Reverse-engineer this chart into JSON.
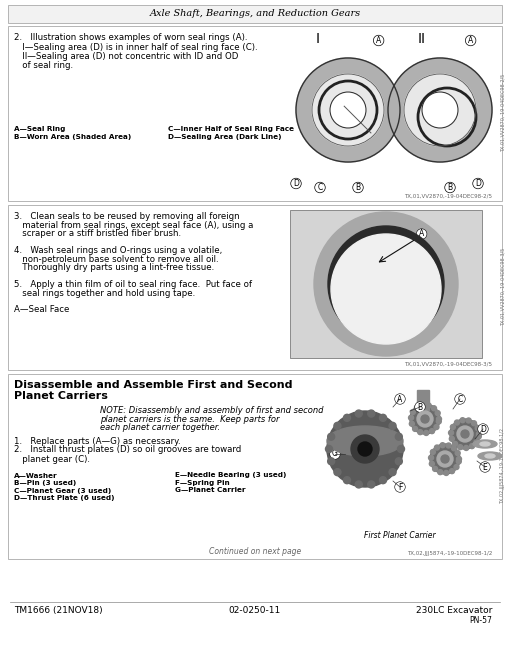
{
  "page_bg": "#ffffff",
  "header_title": "Axle Shaft, Bearings, and Reduction Gears",
  "footer_left": "TM1666 (21NOV18)",
  "footer_center": "02-0250-11",
  "footer_right": "230LC Excavator",
  "footer_right2": "PN-57",
  "s1_text": [
    "2.   Illustration shows examples of worn seal rings (A).",
    "   I—Sealing area (D) is in inner half of seal ring face (C).",
    "   II—Sealing area (D) not concentric with ID and OD",
    "   of seal ring."
  ],
  "s1_leg_l": [
    "A—Seal Ring",
    "B—Worn Area (Shaded Area)"
  ],
  "s1_leg_r": [
    "C—Inner Half of Seal Ring Face",
    "D—Sealing Area (Dark Line)"
  ],
  "s1_ref": "TX,01,VV2870,-19-04DEC98-2/5",
  "s2_text": [
    "3.   Clean seals to be reused by removing all foreign",
    "   material from seal rings, except seal face (A), using a",
    "   scraper or a stiff bristled fiber brush.",
    "",
    "4.   Wash seal rings and O-rings using a volatile,",
    "   non-petroleum base solvent to remove all oil.",
    "   Thoroughly dry parts using a lint-free tissue.",
    "",
    "5.   Apply a thin film of oil to seal ring face.  Put face of",
    "   seal rings together and hold using tape.",
    "",
    "A—Seal Face"
  ],
  "s2_ref": "TX,01,VV2870,-19-04DEC98-3/5",
  "s3_title1": "Disassemble and Assemble First and Second",
  "s3_title2": "Planet Carriers",
  "s3_note": [
    "NOTE: Disassembly and assembly of first and second",
    "planet carriers is the same.  Keep parts for",
    "each planet carrier together."
  ],
  "s3_steps": [
    "1.   Replace parts (A—G) as necessary.",
    "2.   Install thrust plates (D) so oil grooves are toward",
    "   planet gear (C)."
  ],
  "s3_leg_l": [
    "A—Washer",
    "B—Pin (3 used)",
    "C—Planet Gear (3 used)",
    "D—Thrust Plate (6 used)"
  ],
  "s3_leg_r": [
    "E—Needle Bearing (3 used)",
    "F—Spring Pin",
    "G—Planet Carrier"
  ],
  "s3_caption": "First Planet Carrier",
  "s3_continued": "Continued on next page",
  "s3_ref": "TX,02,JJJ5874,-19-10DEC98-1/2"
}
